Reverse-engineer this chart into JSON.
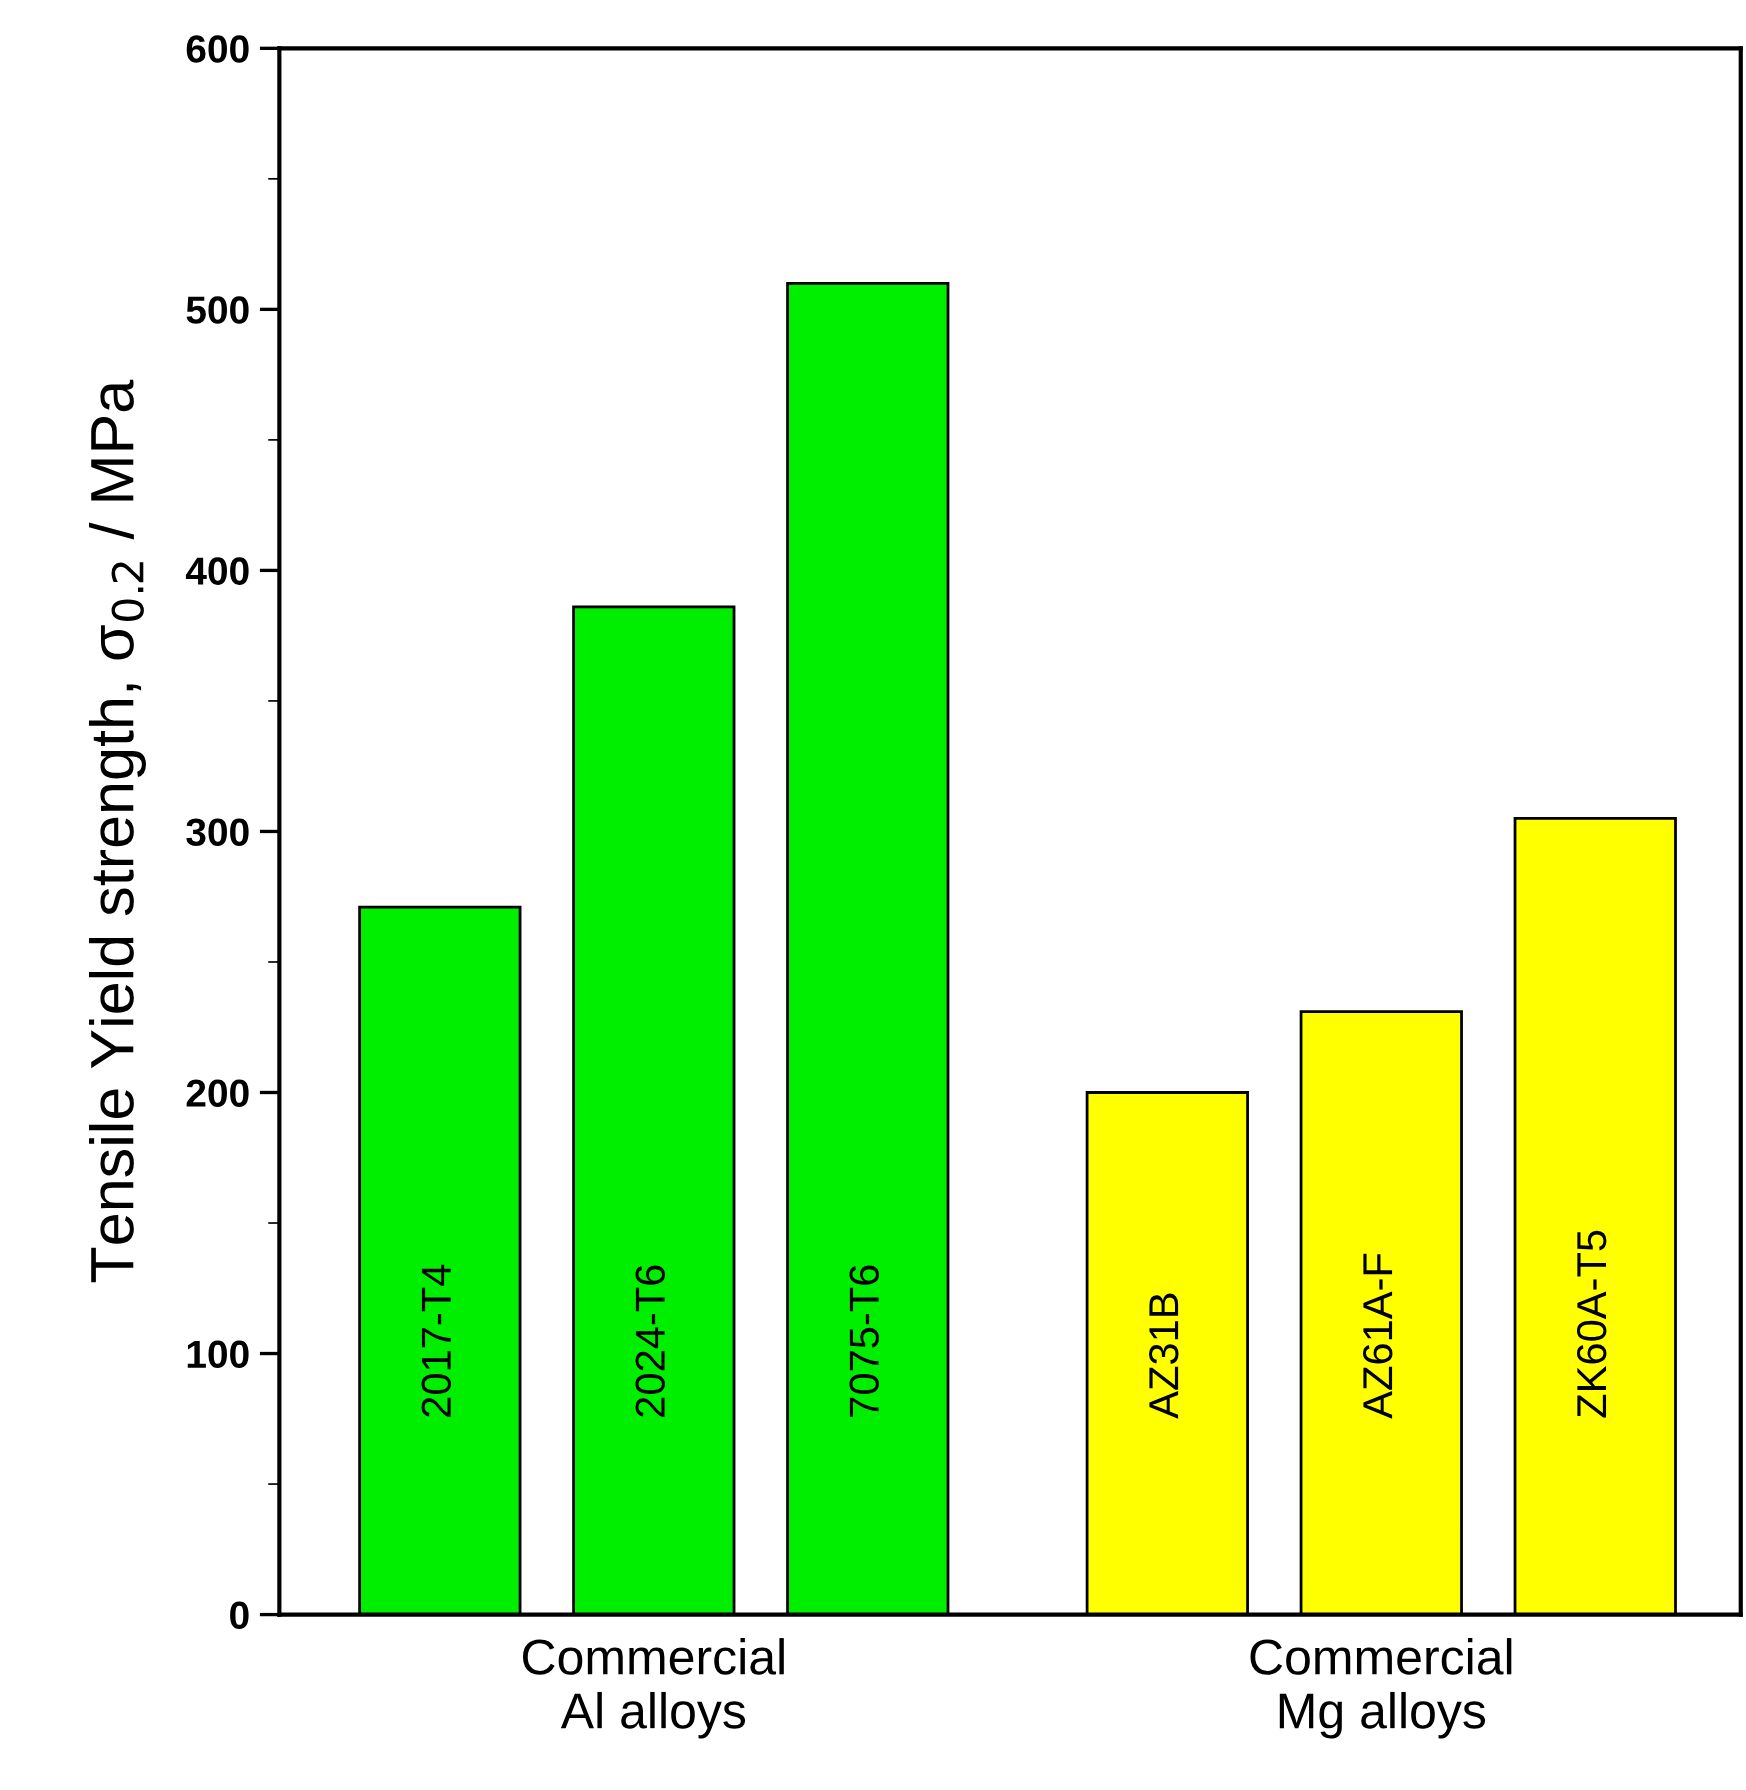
{
  "chart_data": {
    "type": "bar",
    "ylabel": "Tensile Yield strength, σ$_{0.2}$ / MPa",
    "categories": [
      "2017-T4",
      "2024-T6",
      "7075-T6",
      "AZ31B",
      "AZ61A-F",
      "ZK60A-T5"
    ],
    "values": [
      271,
      386,
      510,
      200,
      231,
      305
    ],
    "colors": [
      "#00ee00",
      "#00ee00",
      "#00ee00",
      "#ffff00",
      "#ffff00",
      "#ffff00"
    ],
    "ylim": [
      0,
      600
    ],
    "yticks": [
      0,
      100,
      200,
      300,
      400,
      500,
      600
    ],
    "grid": false,
    "annotations": [
      "Commercial\nAl alloys",
      "Commercial\nMg alloys"
    ]
  }
}
